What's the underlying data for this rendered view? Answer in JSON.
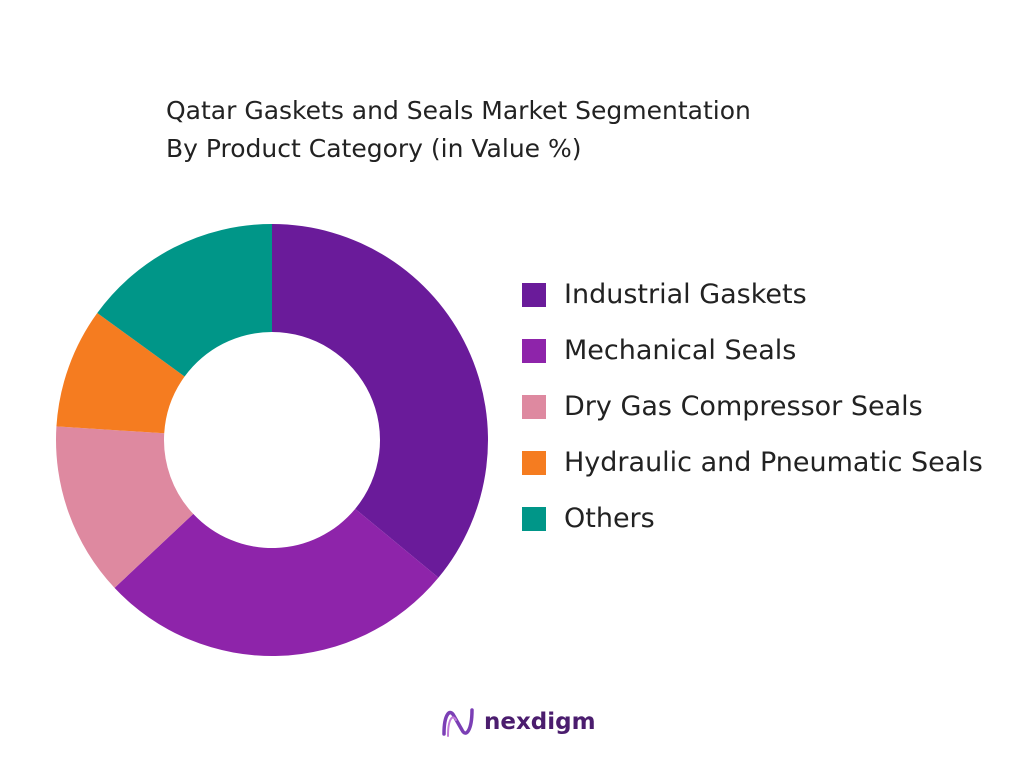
{
  "chart_data": {
    "type": "donut",
    "title": [
      "Qatar Gaskets and Seals Market Segmentation",
      "By Product Category (in Value %)"
    ],
    "categories": [
      "Industrial Gaskets",
      "Mechanical Seals",
      "Dry Gas Compressor Seals",
      "Hydraulic and Pneumatic Seals",
      "Others"
    ],
    "values": [
      36,
      27,
      13,
      9,
      15
    ],
    "colors": [
      "#6a1b9a",
      "#8e24aa",
      "#de89a0",
      "#f57c20",
      "#009688"
    ],
    "legend": "right"
  },
  "brand": "nexdigm"
}
